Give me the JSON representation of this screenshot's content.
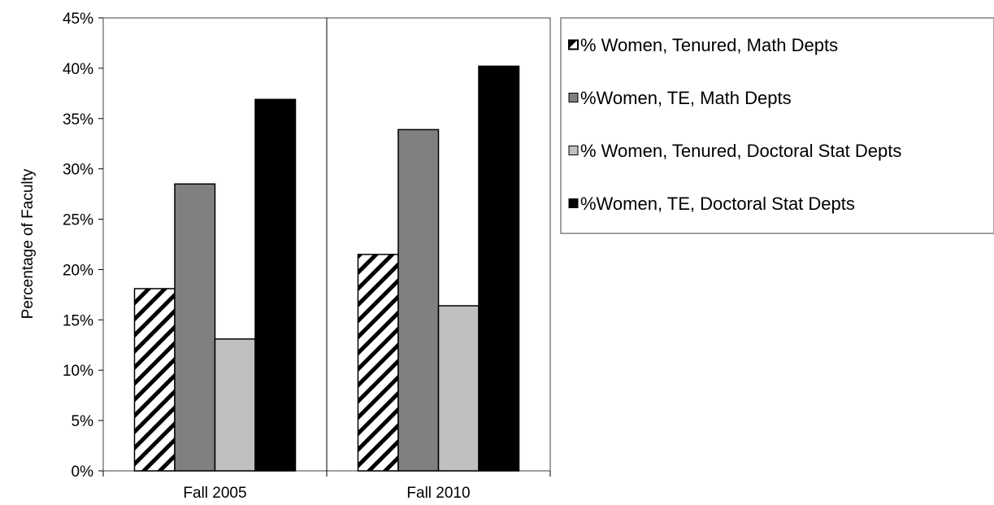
{
  "chart_data": {
    "type": "bar",
    "title": "",
    "xlabel": "",
    "ylabel": "Percentage of Faculty",
    "categories": [
      "Fall 2005",
      "Fall 2010"
    ],
    "ylim": [
      0,
      45
    ],
    "yticks": [
      "0%",
      "5%",
      "10%",
      "15%",
      "20%",
      "25%",
      "30%",
      "35%",
      "40%",
      "45%"
    ],
    "series": [
      {
        "name": "% Women, Tenured, Math Depts",
        "values": [
          18.1,
          21.5
        ],
        "fill": "hatch",
        "color": "#000000"
      },
      {
        "name": "%Women, TE, Math Depts",
        "values": [
          28.5,
          33.9
        ],
        "fill": "solid",
        "color": "#808080"
      },
      {
        "name": "% Women, Tenured, Doctoral Stat Depts",
        "values": [
          13.1,
          16.4
        ],
        "fill": "solid",
        "color": "#c0c0c0"
      },
      {
        "name": "%Women, TE, Doctoral Stat Depts",
        "values": [
          36.9,
          40.2
        ],
        "fill": "solid",
        "color": "#000000"
      }
    ],
    "grid": false,
    "legend": "right"
  }
}
